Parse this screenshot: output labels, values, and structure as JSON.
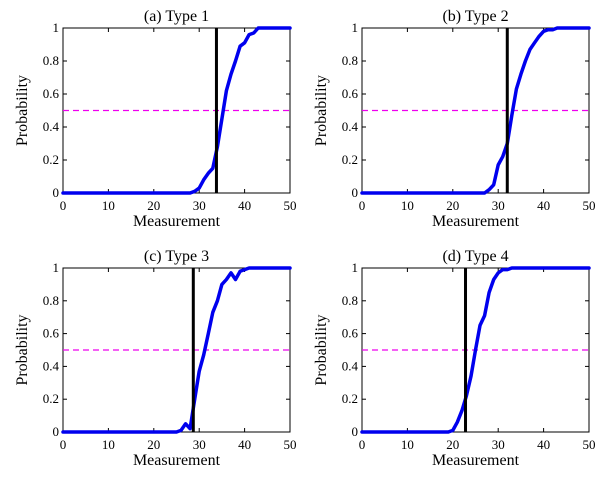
{
  "chart_data": [
    {
      "type": "line",
      "title": "(a) Type 1",
      "xlabel": "Measurement",
      "ylabel": "Probability",
      "xlim": [
        0,
        50
      ],
      "ylim": [
        0,
        1
      ],
      "xticks": [
        0,
        10,
        20,
        30,
        40,
        50
      ],
      "yticks": [
        0,
        0.2,
        0.4,
        0.6,
        0.8,
        1
      ],
      "xtick_labels": [
        "0",
        "10",
        "20",
        "30",
        "40",
        "50"
      ],
      "ytick_labels": [
        "0",
        "0.2",
        "0.4",
        "0.6",
        "0.8",
        "1"
      ],
      "series": [
        {
          "color": "#0000ee",
          "style": "solid",
          "x": [
            0,
            1,
            2,
            3,
            4,
            5,
            6,
            7,
            8,
            9,
            10,
            11,
            12,
            13,
            14,
            15,
            16,
            17,
            18,
            19,
            20,
            21,
            22,
            23,
            24,
            25,
            26,
            27,
            28,
            29,
            30,
            31,
            32,
            33,
            34,
            35,
            36,
            37,
            38,
            39,
            40,
            41,
            42,
            43,
            44,
            45,
            46,
            47,
            48,
            49,
            50
          ],
          "y": [
            0,
            0,
            0,
            0,
            0,
            0,
            0,
            0,
            0,
            0,
            0,
            0,
            0,
            0,
            0,
            0,
            0,
            0,
            0,
            0,
            0,
            0,
            0,
            0,
            0,
            0,
            0,
            0,
            0,
            0.01,
            0.03,
            0.08,
            0.12,
            0.15,
            0.28,
            0.45,
            0.62,
            0.72,
            0.8,
            0.89,
            0.91,
            0.96,
            0.97,
            1,
            1,
            1,
            1,
            1,
            1,
            1,
            1
          ]
        }
      ],
      "threshold_x": 33.8,
      "threshold_color": "#000000",
      "reference_y": 0.5,
      "reference_color": "#ee00ee",
      "grid": false
    },
    {
      "type": "line",
      "title": "(b) Type 2",
      "xlabel": "Measurement",
      "ylabel": "Probability",
      "xlim": [
        0,
        50
      ],
      "ylim": [
        0,
        1
      ],
      "xticks": [
        0,
        10,
        20,
        30,
        40,
        50
      ],
      "yticks": [
        0,
        0.2,
        0.4,
        0.6,
        0.8,
        1
      ],
      "xtick_labels": [
        "0",
        "10",
        "20",
        "30",
        "40",
        "50"
      ],
      "ytick_labels": [
        "0",
        "0.2",
        "0.4",
        "0.6",
        "0.8",
        "1"
      ],
      "series": [
        {
          "color": "#0000ee",
          "style": "solid",
          "x": [
            0,
            1,
            2,
            3,
            4,
            5,
            6,
            7,
            8,
            9,
            10,
            11,
            12,
            13,
            14,
            15,
            16,
            17,
            18,
            19,
            20,
            21,
            22,
            23,
            24,
            25,
            26,
            27,
            28,
            29,
            30,
            31,
            32,
            33,
            34,
            35,
            36,
            37,
            38,
            39,
            40,
            41,
            42,
            43,
            44,
            45,
            46,
            47,
            48,
            49,
            50
          ],
          "y": [
            0,
            0,
            0,
            0,
            0,
            0,
            0,
            0,
            0,
            0,
            0,
            0,
            0,
            0,
            0,
            0,
            0,
            0,
            0,
            0,
            0,
            0,
            0,
            0,
            0,
            0,
            0,
            0,
            0.02,
            0.05,
            0.17,
            0.22,
            0.3,
            0.47,
            0.63,
            0.72,
            0.8,
            0.87,
            0.91,
            0.95,
            0.98,
            0.99,
            0.99,
            1,
            1,
            1,
            1,
            1,
            1,
            1,
            1
          ]
        }
      ],
      "threshold_x": 32,
      "threshold_color": "#000000",
      "reference_y": 0.5,
      "reference_color": "#ee00ee",
      "grid": false
    },
    {
      "type": "line",
      "title": "(c) Type 3",
      "xlabel": "Measurement",
      "ylabel": "Probability",
      "xlim": [
        0,
        50
      ],
      "ylim": [
        0,
        1
      ],
      "xticks": [
        0,
        10,
        20,
        30,
        40,
        50
      ],
      "yticks": [
        0,
        0.2,
        0.4,
        0.6,
        0.8,
        1
      ],
      "xtick_labels": [
        "0",
        "10",
        "20",
        "30",
        "40",
        "50"
      ],
      "ytick_labels": [
        "0",
        "0.2",
        "0.4",
        "0.6",
        "0.8",
        "1"
      ],
      "series": [
        {
          "color": "#0000ee",
          "style": "solid",
          "x": [
            0,
            1,
            2,
            3,
            4,
            5,
            6,
            7,
            8,
            9,
            10,
            11,
            12,
            13,
            14,
            15,
            16,
            17,
            18,
            19,
            20,
            21,
            22,
            23,
            24,
            25,
            26,
            27,
            28,
            29,
            30,
            31,
            32,
            33,
            34,
            35,
            36,
            37,
            38,
            39,
            40,
            41,
            42,
            43,
            44,
            45,
            46,
            47,
            48,
            49,
            50
          ],
          "y": [
            0,
            0,
            0,
            0,
            0,
            0,
            0,
            0,
            0,
            0,
            0,
            0,
            0,
            0,
            0,
            0,
            0,
            0,
            0,
            0,
            0,
            0,
            0,
            0,
            0,
            0,
            0.01,
            0.05,
            0.02,
            0.2,
            0.37,
            0.47,
            0.6,
            0.73,
            0.8,
            0.9,
            0.93,
            0.97,
            0.93,
            0.98,
            0.99,
            1,
            1,
            1,
            1,
            1,
            1,
            1,
            1,
            1,
            1
          ]
        }
      ],
      "threshold_x": 28.7,
      "threshold_color": "#000000",
      "reference_y": 0.5,
      "reference_color": "#ee00ee",
      "grid": false
    },
    {
      "type": "line",
      "title": "(d) Type 4",
      "xlabel": "Measurement",
      "ylabel": "Probability",
      "xlim": [
        0,
        50
      ],
      "ylim": [
        0,
        1
      ],
      "xticks": [
        0,
        10,
        20,
        30,
        40,
        50
      ],
      "yticks": [
        0,
        0.2,
        0.4,
        0.6,
        0.8,
        1
      ],
      "xtick_labels": [
        "0",
        "10",
        "20",
        "30",
        "40",
        "50"
      ],
      "ytick_labels": [
        "0",
        "0.2",
        "0.4",
        "0.6",
        "0.8",
        "1"
      ],
      "series": [
        {
          "color": "#0000ee",
          "style": "solid",
          "x": [
            0,
            1,
            2,
            3,
            4,
            5,
            6,
            7,
            8,
            9,
            10,
            11,
            12,
            13,
            14,
            15,
            16,
            17,
            18,
            19,
            20,
            21,
            22,
            23,
            24,
            25,
            26,
            27,
            28,
            29,
            30,
            31,
            32,
            33,
            34,
            35,
            36,
            37,
            38,
            39,
            40,
            41,
            42,
            43,
            44,
            45,
            46,
            47,
            48,
            49,
            50
          ],
          "y": [
            0,
            0,
            0,
            0,
            0,
            0,
            0,
            0,
            0,
            0,
            0,
            0,
            0,
            0,
            0,
            0,
            0,
            0,
            0,
            0,
            0.01,
            0.06,
            0.13,
            0.22,
            0.34,
            0.5,
            0.65,
            0.71,
            0.85,
            0.93,
            0.97,
            0.99,
            0.99,
            1,
            1,
            1,
            1,
            1,
            1,
            1,
            1,
            1,
            1,
            1,
            1,
            1,
            1,
            1,
            1,
            1,
            1
          ]
        }
      ],
      "threshold_x": 22.8,
      "threshold_color": "#000000",
      "reference_y": 0.5,
      "reference_color": "#ee00ee",
      "grid": false
    }
  ]
}
